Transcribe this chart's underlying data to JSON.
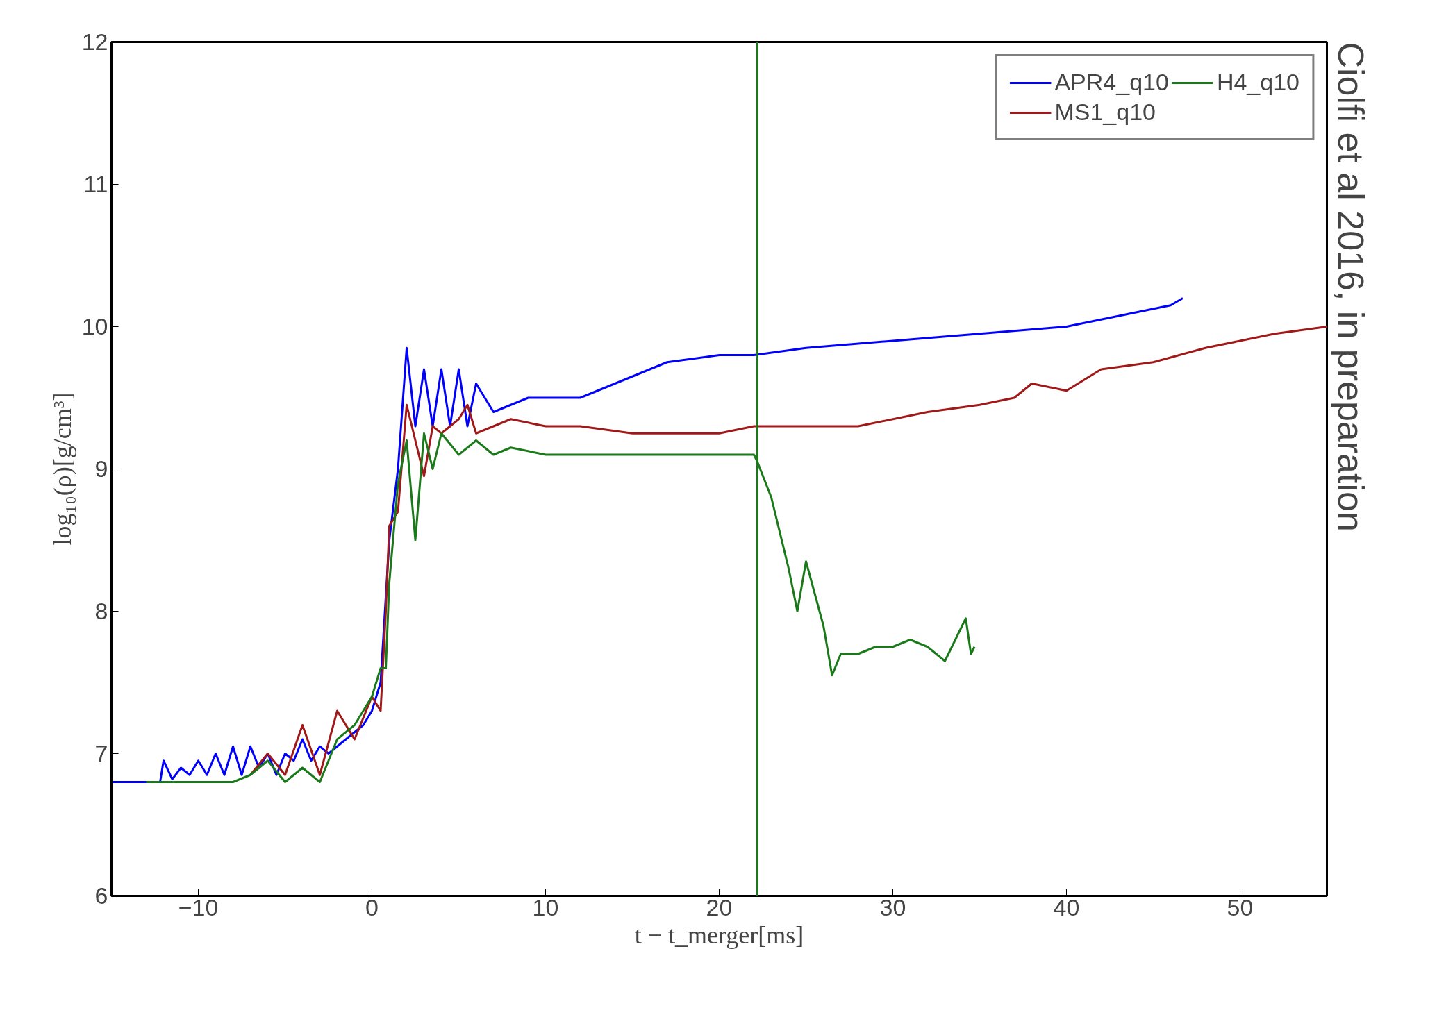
{
  "chart_data": {
    "type": "line",
    "xlabel": "t − t_merger[ms]",
    "ylabel": "log₁₀(ρ)[g/cm³]",
    "annotations": [
      "Ciolfi et al 2016, in preparation"
    ],
    "xlim": [
      -15,
      55
    ],
    "xticks": [
      -10,
      0,
      10,
      20,
      30,
      40,
      50
    ],
    "ylim": [
      6,
      12
    ],
    "yticks": [
      6,
      7,
      8,
      9,
      10,
      11,
      12
    ],
    "grid": false,
    "legend": "top right",
    "line_style": "solid",
    "marker": "none",
    "ref_lines": [
      {
        "axis": "x",
        "value": 22.2,
        "color": "#1a7a1a"
      }
    ],
    "series": [
      {
        "name": "APR4_q10",
        "color": "#0000ff",
        "x": [
          -15,
          -12.2,
          -12,
          -11.5,
          -11,
          -10.5,
          -10,
          -9.5,
          -9,
          -8.5,
          -8,
          -7.5,
          -7,
          -6.5,
          -6,
          -5.5,
          -5,
          -4.5,
          -4,
          -3.5,
          -3,
          -2.5,
          -2,
          -1.5,
          -1,
          -0.5,
          0,
          0.5,
          1,
          1.5,
          2,
          2.5,
          3,
          3.5,
          4,
          4.5,
          5,
          5.5,
          6,
          7,
          8,
          9,
          10,
          12,
          14,
          16,
          17,
          20,
          22,
          25,
          30,
          35,
          40,
          44,
          46,
          46.7
        ],
        "values": [
          6.8,
          6.8,
          6.95,
          6.82,
          6.9,
          6.85,
          6.95,
          6.85,
          7.0,
          6.85,
          7.05,
          6.85,
          7.05,
          6.9,
          7.0,
          6.85,
          7.0,
          6.95,
          7.1,
          6.95,
          7.05,
          7.0,
          7.05,
          7.1,
          7.15,
          7.2,
          7.3,
          7.5,
          8.5,
          9.0,
          9.85,
          9.3,
          9.7,
          9.3,
          9.7,
          9.3,
          9.7,
          9.3,
          9.6,
          9.4,
          9.45,
          9.5,
          9.5,
          9.5,
          9.6,
          9.7,
          9.75,
          9.8,
          9.8,
          9.85,
          9.9,
          9.95,
          10.0,
          10.1,
          10.15,
          10.2
        ]
      },
      {
        "name": "MS1_q10",
        "color": "#a01818",
        "x": [
          -7,
          -6,
          -5,
          -4,
          -3,
          -2,
          -1,
          0,
          0.5,
          0.8,
          1,
          1.5,
          2,
          2.5,
          3,
          3.5,
          4,
          5,
          5.5,
          6,
          7,
          8,
          10,
          12,
          15,
          18,
          20,
          22,
          25,
          28,
          32,
          35,
          37,
          38,
          40,
          42,
          45,
          48,
          52,
          55
        ],
        "values": [
          6.85,
          7.0,
          6.85,
          7.2,
          6.85,
          7.3,
          7.1,
          7.4,
          7.3,
          8.0,
          8.6,
          8.7,
          9.45,
          9.2,
          8.95,
          9.3,
          9.25,
          9.35,
          9.45,
          9.25,
          9.3,
          9.35,
          9.3,
          9.3,
          9.25,
          9.25,
          9.25,
          9.3,
          9.3,
          9.3,
          9.4,
          9.45,
          9.5,
          9.6,
          9.55,
          9.7,
          9.75,
          9.85,
          9.95,
          10.0
        ]
      },
      {
        "name": "H4_q10",
        "color": "#1a7a1a",
        "x": [
          -13,
          -8,
          -7,
          -6,
          -5,
          -4,
          -3,
          -2,
          -1,
          0,
          0.5,
          0.8,
          1,
          1.5,
          2,
          2.5,
          3,
          3.5,
          4,
          5,
          6,
          7,
          8,
          10,
          12,
          15,
          18,
          20,
          22,
          22.2,
          23,
          24,
          24.5,
          25,
          26,
          26.5,
          27,
          28,
          29,
          30,
          31,
          32,
          33,
          34,
          34.2,
          34.5,
          34.7
        ],
        "values": [
          6.8,
          6.8,
          6.85,
          6.95,
          6.8,
          6.9,
          6.8,
          7.1,
          7.2,
          7.4,
          7.6,
          7.6,
          8.2,
          8.9,
          9.2,
          8.5,
          9.25,
          9.0,
          9.25,
          9.1,
          9.2,
          9.1,
          9.15,
          9.1,
          9.1,
          9.1,
          9.1,
          9.1,
          9.1,
          9.05,
          8.8,
          8.3,
          8.0,
          8.35,
          7.9,
          7.55,
          7.7,
          7.7,
          7.75,
          7.75,
          7.8,
          7.75,
          7.65,
          7.9,
          7.95,
          7.7,
          7.75
        ]
      }
    ]
  }
}
